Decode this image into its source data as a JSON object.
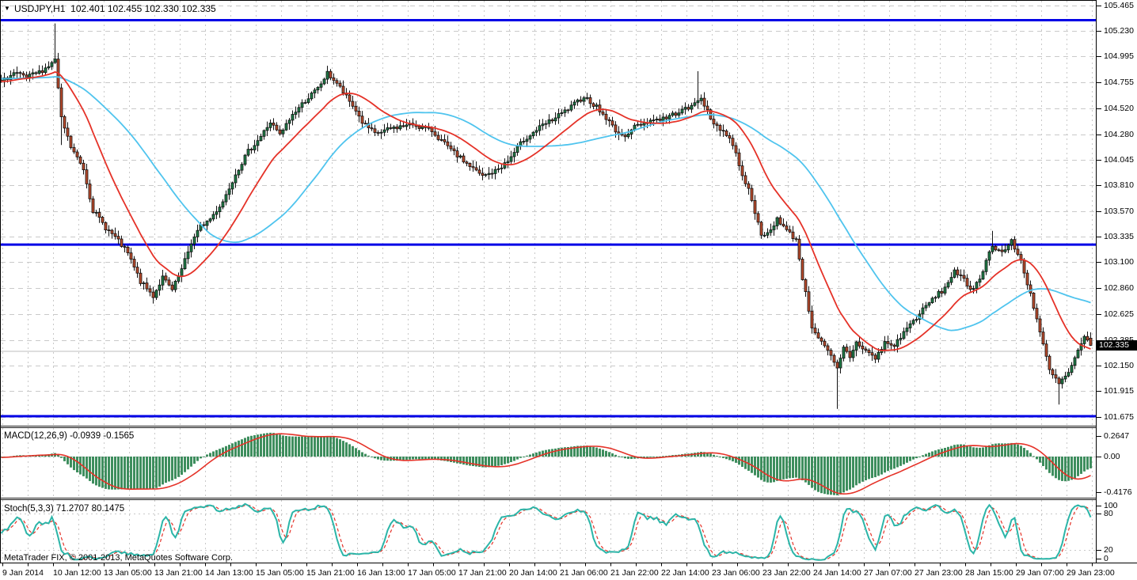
{
  "window": {
    "symbol_period": "USDJPY,H1",
    "ohlc_quote": "102.401 102.455 102.330 102.335",
    "collapse_arrow": "▼"
  },
  "footer": {
    "copyright": "MetaTrader FIX, © 2001-2013, MetaQuotes Software Corp."
  },
  "colors": {
    "background": "#ffffff",
    "text": "#000000",
    "grid": "#c9c9c9",
    "frame": "#000000",
    "candle_up": "#1e7b46",
    "candle_down": "#ba4a2c",
    "wick": "#111111",
    "ma_red": "#e53228",
    "ma_cyan": "#4fc4ee",
    "hline_blue": "#0000e6",
    "hline_gray": "#bebebe",
    "macd_bar": "#3e8e5e",
    "macd_signal": "#e53228",
    "macd_zero": "#bdbdbd",
    "stoch_main": "#2bb5a8",
    "stoch_signal": "#e53228",
    "badge_bg": "#000000",
    "badge_text": "#ffffff"
  },
  "price_axis": {
    "current_price": "102.335",
    "current_price_value": 102.335,
    "ticks": [
      {
        "text": "105.465",
        "value": 105.465
      },
      {
        "text": "105.230",
        "value": 105.23
      },
      {
        "text": "104.995",
        "value": 104.995
      },
      {
        "text": "104.755",
        "value": 104.755
      },
      {
        "text": "104.520",
        "value": 104.52
      },
      {
        "text": "104.280",
        "value": 104.28
      },
      {
        "text": "104.045",
        "value": 104.045
      },
      {
        "text": "103.810",
        "value": 103.81
      },
      {
        "text": "103.570",
        "value": 103.57
      },
      {
        "text": "103.335",
        "value": 103.335
      },
      {
        "text": "103.100",
        "value": 103.1
      },
      {
        "text": "102.860",
        "value": 102.86
      },
      {
        "text": "102.625",
        "value": 102.625
      },
      {
        "text": "102.385",
        "value": 102.385
      },
      {
        "text": "102.150",
        "value": 102.15
      },
      {
        "text": "101.915",
        "value": 101.915
      },
      {
        "text": "101.675",
        "value": 101.675
      }
    ]
  },
  "time_axis": {
    "labels": [
      "9 Jan 2014",
      "10 Jan 12:00",
      "13 Jan 05:00",
      "13 Jan 21:00",
      "14 Jan 13:00",
      "15 Jan 05:00",
      "15 Jan 21:00",
      "16 Jan 13:00",
      "17 Jan 05:00",
      "17 Jan 21:00",
      "20 Jan 14:00",
      "21 Jan 06:00",
      "21 Jan 22:00",
      "22 Jan 14:00",
      "23 Jan 06:00",
      "23 Jan 22:00",
      "24 Jan 14:00",
      "27 Jan 07:00",
      "27 Jan 23:00",
      "28 Jan 15:00",
      "29 Jan 07:00",
      "29 Jan 23:00"
    ]
  },
  "chart_data": [
    {
      "type": "candlestick",
      "title": "USDJPY,H1",
      "ohlc_display": {
        "open": "102.401",
        "high": "102.455",
        "low": "102.330",
        "close": "102.335"
      },
      "ylim": [
        101.56,
        105.52
      ],
      "grid": true,
      "anchors": [
        [
          -64,
          104.72
        ],
        [
          -40,
          104.8
        ],
        [
          -22,
          104.84
        ],
        [
          -12,
          104.72
        ],
        [
          -6,
          104.78
        ],
        [
          0,
          104.76
        ],
        [
          4,
          104.84
        ],
        [
          8,
          104.8
        ],
        [
          12,
          104.85
        ],
        [
          16,
          104.93
        ],
        [
          17,
          104.97
        ],
        [
          19,
          104.42
        ],
        [
          22,
          104.16
        ],
        [
          24,
          104.06
        ],
        [
          26,
          103.96
        ],
        [
          29,
          103.58
        ],
        [
          33,
          103.42
        ],
        [
          36,
          103.33
        ],
        [
          40,
          103.18
        ],
        [
          44,
          102.92
        ],
        [
          48,
          102.79
        ],
        [
          51,
          102.96
        ],
        [
          54,
          102.84
        ],
        [
          57,
          103.03
        ],
        [
          60,
          103.28
        ],
        [
          63,
          103.43
        ],
        [
          66,
          103.5
        ],
        [
          70,
          103.66
        ],
        [
          74,
          103.92
        ],
        [
          78,
          104.12
        ],
        [
          82,
          104.26
        ],
        [
          85,
          104.39
        ],
        [
          88,
          104.27
        ],
        [
          92,
          104.46
        ],
        [
          96,
          104.59
        ],
        [
          100,
          104.7
        ],
        [
          103,
          104.84
        ],
        [
          106,
          104.75
        ],
        [
          109,
          104.62
        ],
        [
          112,
          104.5
        ],
        [
          114,
          104.39
        ],
        [
          118,
          104.28
        ],
        [
          124,
          104.34
        ],
        [
          130,
          104.37
        ],
        [
          136,
          104.31
        ],
        [
          142,
          104.13
        ],
        [
          147,
          104.01
        ],
        [
          152,
          103.89
        ],
        [
          156,
          103.94
        ],
        [
          160,
          104.03
        ],
        [
          165,
          104.23
        ],
        [
          170,
          104.34
        ],
        [
          175,
          104.43
        ],
        [
          180,
          104.53
        ],
        [
          184,
          104.63
        ],
        [
          188,
          104.53
        ],
        [
          192,
          104.39
        ],
        [
          196,
          104.25
        ],
        [
          200,
          104.35
        ],
        [
          205,
          104.41
        ],
        [
          210,
          104.43
        ],
        [
          214,
          104.49
        ],
        [
          218,
          104.53
        ],
        [
          221,
          104.63
        ],
        [
          224,
          104.41
        ],
        [
          228,
          104.31
        ],
        [
          231,
          104.19
        ],
        [
          234,
          103.91
        ],
        [
          237,
          103.69
        ],
        [
          240,
          103.33
        ],
        [
          243,
          103.39
        ],
        [
          245,
          103.51
        ],
        [
          248,
          103.39
        ],
        [
          251,
          103.31
        ],
        [
          253,
          102.96
        ],
        [
          256,
          102.51
        ],
        [
          259,
          102.36
        ],
        [
          262,
          102.23
        ],
        [
          264,
          102.11
        ],
        [
          266,
          102.31
        ],
        [
          268,
          102.23
        ],
        [
          270,
          102.36
        ],
        [
          273,
          102.29
        ],
        [
          276,
          102.21
        ],
        [
          279,
          102.36
        ],
        [
          282,
          102.33
        ],
        [
          285,
          102.46
        ],
        [
          288,
          102.56
        ],
        [
          291,
          102.66
        ],
        [
          294,
          102.76
        ],
        [
          298,
          102.86
        ],
        [
          301,
          103.03
        ],
        [
          304,
          102.93
        ],
        [
          306,
          102.83
        ],
        [
          309,
          102.96
        ],
        [
          313,
          103.26
        ],
        [
          316,
          103.19
        ],
        [
          319,
          103.29
        ],
        [
          322,
          103.11
        ],
        [
          325,
          102.81
        ],
        [
          328,
          102.46
        ],
        [
          331,
          102.1
        ],
        [
          334,
          101.98
        ],
        [
          337,
          102.08
        ],
        [
          340,
          102.28
        ],
        [
          342,
          102.4
        ],
        [
          344,
          102.335
        ]
      ],
      "wick_overrides": {
        "17": {
          "h": 105.3
        },
        "19": {
          "l": 104.18
        },
        "48": {
          "l": 102.72
        },
        "103": {
          "h": 104.91
        },
        "220": {
          "h": 104.86
        },
        "264": {
          "l": 101.75
        },
        "313": {
          "h": 103.39
        },
        "334": {
          "l": 101.79
        },
        "344": {
          "o": 102.401,
          "h": 102.455,
          "l": 102.33
        }
      },
      "hlines": [
        {
          "price": 105.33,
          "color_key": "hline_blue",
          "width": 3
        },
        {
          "price": 103.263,
          "color_key": "hline_blue",
          "width": 3
        },
        {
          "price": 101.682,
          "color_key": "hline_blue",
          "width": 3
        },
        {
          "price": 102.28,
          "color_key": "hline_gray",
          "width": 1
        }
      ],
      "moving_averages": [
        {
          "name": "ma-slow-cyan",
          "method": "sma",
          "period": 48,
          "color_key": "ma_cyan",
          "width": 1.8
        },
        {
          "name": "ma-fast-red",
          "method": "lwma",
          "period": 26,
          "color_key": "ma_red",
          "width": 1.8
        }
      ]
    },
    {
      "type": "macd",
      "label": "MACD(12,26,9) -0.0939 -0.1565",
      "params": [
        12,
        26,
        9
      ],
      "current": {
        "macd": -0.0939,
        "signal": -0.1565
      },
      "ticks": [
        "0.2647",
        "0.00",
        "-0.4176"
      ],
      "ylim": [
        -0.4176,
        0.2647
      ]
    },
    {
      "type": "stochastic",
      "label": "Stoch(5,3,3) 71.2707 80.1475",
      "params": [
        5,
        3,
        3
      ],
      "current": {
        "k": 71.2707,
        "d": 80.1475
      },
      "ticks": [
        "100",
        "80",
        "20",
        "0"
      ],
      "tick_values": [
        100,
        80,
        20,
        0
      ],
      "levels": [
        80,
        20
      ],
      "ylim": [
        0,
        100
      ]
    }
  ]
}
